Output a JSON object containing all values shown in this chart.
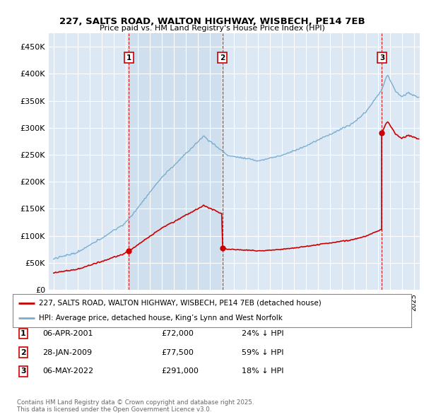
{
  "title_line1": "227, SALTS ROAD, WALTON HIGHWAY, WISBECH, PE14 7EB",
  "title_line2": "Price paid vs. HM Land Registry's House Price Index (HPI)",
  "plot_bg_color": "#dce9f5",
  "red_color": "#cc0000",
  "blue_color": "#7aadcf",
  "shade_color": "#c5d9ec",
  "ylim": [
    0,
    475000
  ],
  "yticks": [
    0,
    50000,
    100000,
    150000,
    200000,
    250000,
    300000,
    350000,
    400000,
    450000
  ],
  "sale_dates": [
    2001.26,
    2009.07,
    2022.35
  ],
  "sale_prices": [
    72000,
    77500,
    291000
  ],
  "sale_labels": [
    "1",
    "2",
    "3"
  ],
  "legend_red": "227, SALTS ROAD, WALTON HIGHWAY, WISBECH, PE14 7EB (detached house)",
  "legend_blue": "HPI: Average price, detached house, King’s Lynn and West Norfolk",
  "table_data": [
    [
      "1",
      "06-APR-2001",
      "£72,000",
      "24% ↓ HPI"
    ],
    [
      "2",
      "28-JAN-2009",
      "£77,500",
      "59% ↓ HPI"
    ],
    [
      "3",
      "06-MAY-2022",
      "£291,000",
      "18% ↓ HPI"
    ]
  ],
  "footnote": "Contains HM Land Registry data © Crown copyright and database right 2025.\nThis data is licensed under the Open Government Licence v3.0."
}
